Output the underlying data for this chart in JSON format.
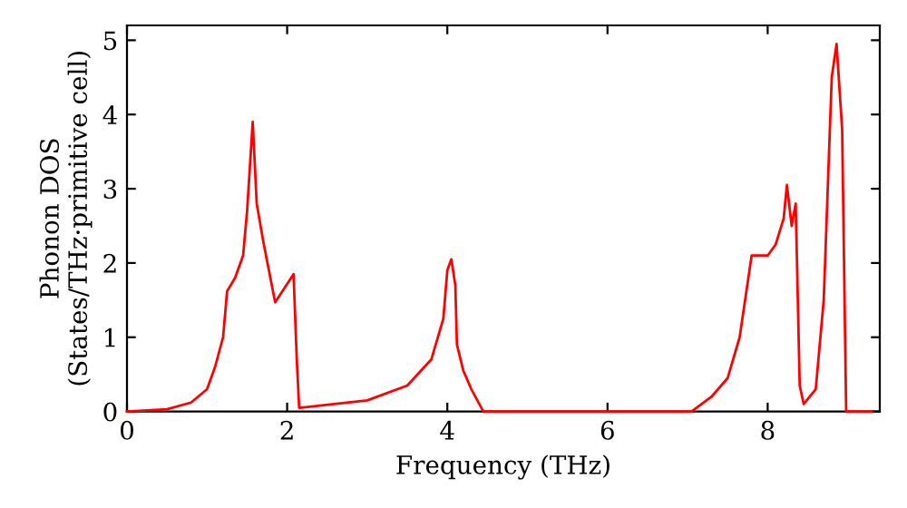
{
  "chart_data": {
    "type": "line",
    "xlabel": "Frequency (THz)",
    "ylabel": "Phonon DOS\n(States/THz·primitive cell)",
    "xlim": [
      0,
      9.4
    ],
    "ylim": [
      0,
      5.2
    ],
    "xticks": [
      0,
      2,
      4,
      6,
      8
    ],
    "yticks": [
      0,
      1,
      2,
      3,
      4,
      5
    ],
    "grid": false,
    "marker": "none",
    "line_style": "solid",
    "series": [
      {
        "color": "#ff0000",
        "x": [
          0,
          0.5,
          0.8,
          1.0,
          1.1,
          1.2,
          1.25,
          1.35,
          1.45,
          1.5,
          1.57,
          1.62,
          1.7,
          1.85,
          2.08,
          2.12,
          2.15,
          3.0,
          3.5,
          3.8,
          3.95,
          4.0,
          4.05,
          4.1,
          4.12,
          4.2,
          4.3,
          4.45,
          7.05,
          7.3,
          7.5,
          7.65,
          7.8,
          8.0,
          8.1,
          8.2,
          8.24,
          8.3,
          8.35,
          8.4,
          8.45,
          8.6,
          8.7,
          8.8,
          8.86,
          8.93,
          8.98,
          9.3
        ],
        "values": [
          0,
          0.03,
          0.12,
          0.3,
          0.6,
          1.0,
          1.62,
          1.8,
          2.1,
          2.7,
          3.9,
          2.8,
          2.3,
          1.47,
          1.85,
          0.7,
          0.05,
          0.15,
          0.35,
          0.7,
          1.25,
          1.9,
          2.05,
          1.7,
          0.9,
          0.55,
          0.3,
          0.0,
          0.0,
          0.2,
          0.45,
          1.0,
          2.1,
          2.1,
          2.25,
          2.6,
          3.05,
          2.5,
          2.8,
          0.35,
          0.1,
          0.3,
          1.5,
          4.5,
          4.95,
          3.8,
          0.0,
          0.0
        ]
      }
    ]
  }
}
